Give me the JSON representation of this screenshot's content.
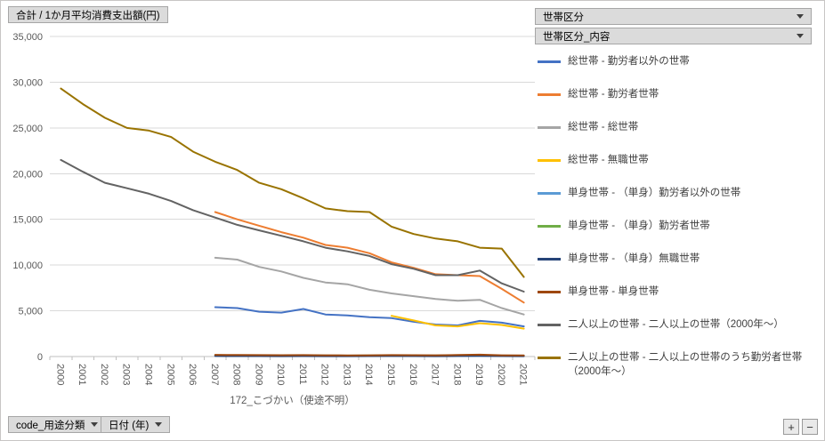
{
  "pivot_chart": {
    "value_field_button": "合計 / 1か月平均消費支出額(円)",
    "category_axis_title": "172_こづかい（使途不明）",
    "category_field_button": "code_用途分類",
    "date_field_button": "日付 (年)",
    "legend_field_button_1": "世帯区分",
    "legend_field_button_2": "世帯区分_内容",
    "expand_button_label": "+",
    "collapse_button_label": "−"
  },
  "chart_data": {
    "type": "line",
    "title": "",
    "xlabel": "172_こづかい（使途不明）",
    "ylabel": "合計 / 1か月平均消費支出額(円)",
    "ylim": [
      0,
      35000
    ],
    "ytick_step": 5000,
    "ytick_labels": [
      "0",
      "5,000",
      "10,000",
      "15,000",
      "20,000",
      "25,000",
      "30,000",
      "35,000"
    ],
    "grid": true,
    "legend_position": "right",
    "x": [
      "2000",
      "2001",
      "2002",
      "2003",
      "2004",
      "2005",
      "2006",
      "2007",
      "2008",
      "2009",
      "2010",
      "2011",
      "2012",
      "2013",
      "2014",
      "2015",
      "2016",
      "2017",
      "2018",
      "2019",
      "2020",
      "2021"
    ],
    "series": [
      {
        "name": "総世帯 - 勤労者以外の世帯",
        "color": "#4472C4",
        "values": [
          null,
          null,
          null,
          null,
          null,
          null,
          null,
          5400,
          5300,
          4900,
          4800,
          5200,
          4600,
          4500,
          4300,
          4200,
          3800,
          3500,
          3400,
          3900,
          3700,
          3300
        ]
      },
      {
        "name": "総世帯 - 勤労者世帯",
        "color": "#ED7D31",
        "values": [
          null,
          null,
          null,
          null,
          null,
          null,
          null,
          15800,
          15000,
          14300,
          13600,
          13000,
          12200,
          11900,
          11300,
          10300,
          9700,
          9000,
          8900,
          8800,
          7400,
          5900
        ]
      },
      {
        "name": "総世帯 - 総世帯",
        "color": "#A5A5A5",
        "values": [
          null,
          null,
          null,
          null,
          null,
          null,
          null,
          10800,
          10600,
          9800,
          9300,
          8600,
          8100,
          7900,
          7300,
          6900,
          6600,
          6300,
          6100,
          6200,
          5300,
          4600
        ]
      },
      {
        "name": "総世帯 - 無職世帯",
        "color": "#FFC000",
        "values": [
          null,
          null,
          null,
          null,
          null,
          null,
          null,
          null,
          null,
          null,
          null,
          null,
          null,
          null,
          null,
          4450,
          3950,
          3400,
          3300,
          3650,
          3450,
          3050
        ]
      },
      {
        "name": "単身世帯 - （単身）勤労者以外の世帯",
        "color": "#5B9BD5",
        "values": [
          null,
          null,
          null,
          null,
          null,
          null,
          null,
          100,
          90,
          80,
          80,
          90,
          80,
          70,
          70,
          80,
          70,
          60,
          80,
          90,
          70,
          60
        ]
      },
      {
        "name": "単身世帯 - （単身）勤労者世帯",
        "color": "#70AD47",
        "values": [
          null,
          null,
          null,
          null,
          null,
          null,
          null,
          150,
          140,
          130,
          120,
          130,
          110,
          100,
          110,
          120,
          100,
          110,
          130,
          140,
          100,
          90
        ]
      },
      {
        "name": "単身世帯 - （単身）無職世帯",
        "color": "#264478",
        "values": [
          null,
          null,
          null,
          null,
          null,
          null,
          null,
          60,
          50,
          50,
          40,
          50,
          40,
          40,
          50,
          60,
          50,
          40,
          60,
          70,
          50,
          40
        ]
      },
      {
        "name": "単身世帯 - 単身世帯",
        "color": "#9E480E",
        "values": [
          null,
          null,
          null,
          null,
          null,
          null,
          null,
          180,
          170,
          160,
          150,
          160,
          140,
          130,
          140,
          160,
          150,
          140,
          170,
          200,
          140,
          120
        ]
      },
      {
        "name": "二人以上の世帯 - 二人以上の世帯（2000年～）",
        "color": "#636363",
        "values": [
          21500,
          20200,
          19000,
          18400,
          17800,
          17000,
          16000,
          15200,
          14400,
          13800,
          13200,
          12600,
          11900,
          11500,
          11000,
          10100,
          9600,
          8900,
          8900,
          9400,
          8000,
          7100
        ]
      },
      {
        "name": "二人以上の世帯 - 二人以上の世帯のうち勤労者世帯（2000年～）",
        "color": "#997300",
        "values": [
          29300,
          27600,
          26100,
          25000,
          24700,
          24000,
          22400,
          21300,
          20400,
          19000,
          18300,
          17300,
          16200,
          15900,
          15800,
          14200,
          13400,
          12900,
          12600,
          11900,
          11800,
          8700
        ]
      }
    ]
  }
}
